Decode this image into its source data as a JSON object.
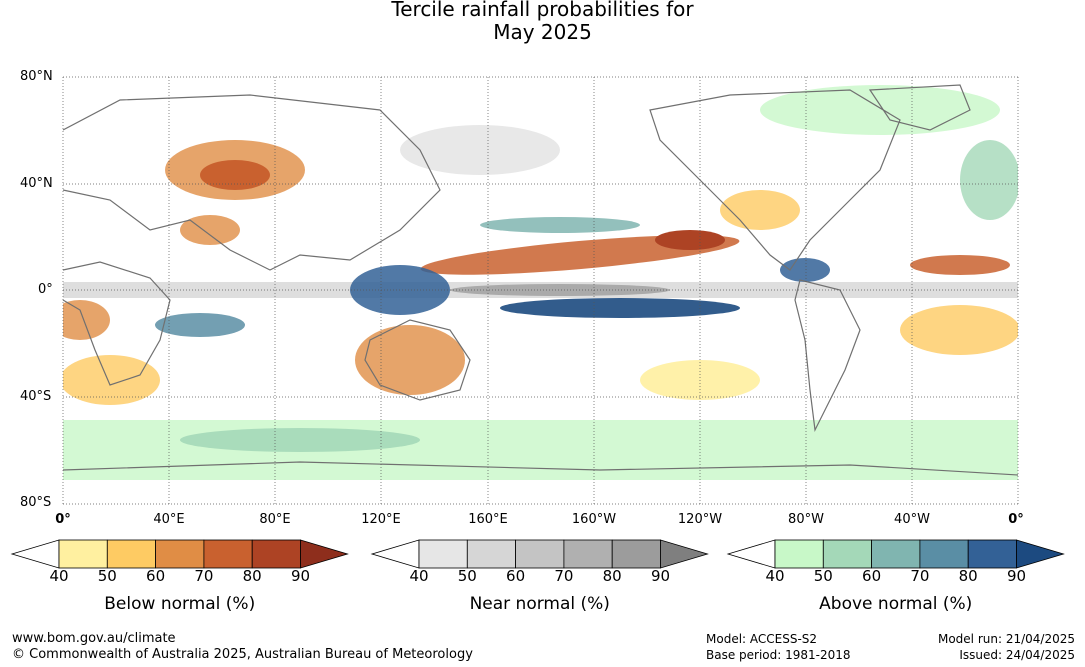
{
  "title_line1": "Tercile rainfall probabilities for",
  "title_line2": "May 2025",
  "lat_labels": [
    "80°N",
    "40°N",
    "0°",
    "40°S",
    "80°S"
  ],
  "lon_labels": [
    "0°",
    "40°E",
    "80°E",
    "120°E",
    "160°E",
    "160°W",
    "120°W",
    "80°W",
    "40°W",
    "0°"
  ],
  "legends": [
    {
      "title": "Below normal (%)",
      "ticks": [
        "40",
        "50",
        "60",
        "70",
        "80",
        "90"
      ],
      "colors": [
        "#fff0a0",
        "#fecb63",
        "#e08d45",
        "#c9612f",
        "#ad4324",
        "#8e2e1c"
      ]
    },
    {
      "title": "Near normal (%)",
      "ticks": [
        "40",
        "50",
        "60",
        "70",
        "80",
        "90"
      ],
      "colors": [
        "#e6e6e6",
        "#d6d6d6",
        "#c4c4c4",
        "#b0b0b0",
        "#9c9c9c",
        "#7f7f7f"
      ]
    },
    {
      "title": "Above normal (%)",
      "ticks": [
        "40",
        "50",
        "60",
        "70",
        "80",
        "90"
      ],
      "colors": [
        "#c8f8c8",
        "#a4d8b8",
        "#80b5b0",
        "#5a8ea5",
        "#336196",
        "#1c4a80"
      ]
    }
  ],
  "footer": {
    "url": "www.bom.gov.au/climate",
    "copyright": "© Commonwealth of Australia 2025, Australian Bureau of Meteorology",
    "model": "Model: ACCESS-S2",
    "base_period": "Base period: 1981-2018",
    "model_run": "Model run: 21/04/2025",
    "issued": "Issued: 24/04/2025"
  }
}
